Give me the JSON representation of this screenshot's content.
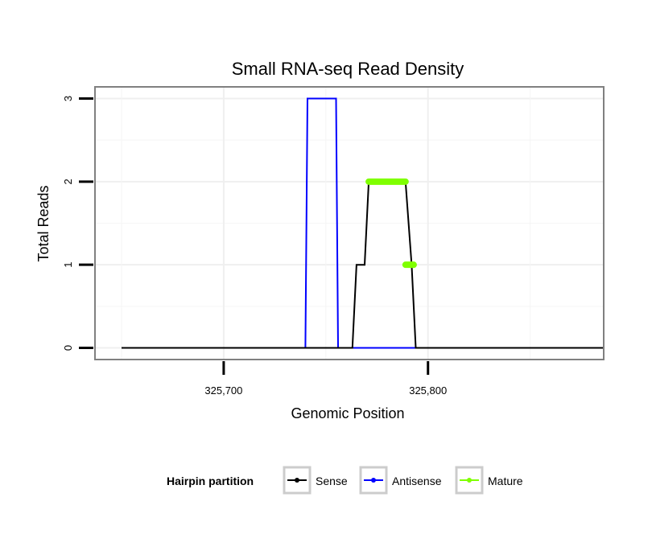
{
  "chart_data": {
    "type": "line",
    "title": "Small RNA-seq Read Density",
    "xlabel": "Genomic Position",
    "ylabel": "Total Reads",
    "xlim": [
      325637,
      325886
    ],
    "ylim": [
      -0.14,
      3.14
    ],
    "x_ticks": [
      325700,
      325800
    ],
    "x_tick_labels": [
      "325,700",
      "325,800"
    ],
    "y_ticks": [
      0,
      1,
      2,
      3
    ],
    "y_tick_labels": [
      "0",
      "1",
      "2",
      "3"
    ],
    "grid": true,
    "legend": {
      "title": "Hairpin partition",
      "position": "bottom",
      "entries": [
        {
          "key": "sense",
          "label": "Sense",
          "color": "#000000"
        },
        {
          "key": "antisense",
          "label": "Antisense",
          "color": "#0000ff"
        },
        {
          "key": "mature",
          "label": "Mature",
          "color": "#7fff00"
        }
      ]
    },
    "series": [
      {
        "name": "Antisense",
        "color": "#0000ff",
        "x": [
          325740,
          325741,
          325755,
          325756,
          325889
        ],
        "y": [
          0,
          3,
          3,
          0,
          0
        ]
      },
      {
        "name": "Sense",
        "color": "#000000",
        "x": [
          325650,
          325763,
          325765,
          325769,
          325771,
          325789,
          325792,
          325794,
          325896
        ],
        "y": [
          0,
          0,
          1,
          1,
          2,
          2,
          1,
          0,
          0
        ]
      },
      {
        "name": "Mature",
        "color": "#7fff00",
        "segments": [
          {
            "x": [
              325771,
              325789
            ],
            "y": [
              2,
              2
            ]
          },
          {
            "x": [
              325789,
              325793
            ],
            "y": [
              1,
              1
            ]
          }
        ]
      }
    ]
  }
}
